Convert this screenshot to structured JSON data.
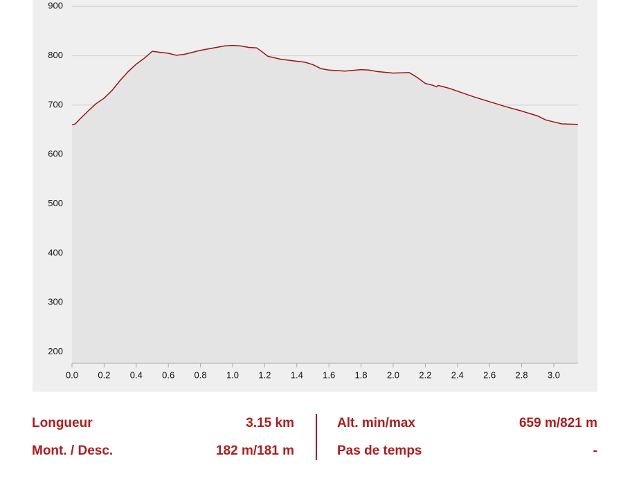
{
  "chart_data": {
    "type": "area",
    "x": [
      0.0,
      0.02,
      0.05,
      0.1,
      0.15,
      0.2,
      0.25,
      0.3,
      0.35,
      0.4,
      0.45,
      0.5,
      0.55,
      0.6,
      0.65,
      0.7,
      0.8,
      0.9,
      0.95,
      1.0,
      1.05,
      1.1,
      1.15,
      1.18,
      1.22,
      1.3,
      1.4,
      1.45,
      1.5,
      1.55,
      1.6,
      1.7,
      1.8,
      1.85,
      1.9,
      2.0,
      2.1,
      2.15,
      2.2,
      2.25,
      2.27,
      2.28,
      2.35,
      2.5,
      2.6,
      2.7,
      2.8,
      2.9,
      2.95,
      3.0,
      3.05,
      3.15
    ],
    "values": [
      660,
      662,
      672,
      688,
      703,
      714,
      730,
      750,
      768,
      783,
      795,
      809,
      807,
      805,
      801,
      803,
      811,
      817,
      820,
      821,
      820,
      817,
      816,
      809,
      799,
      793,
      789,
      787,
      782,
      774,
      771,
      769,
      772,
      771,
      768,
      765,
      766,
      756,
      744,
      740,
      737,
      740,
      734,
      717,
      707,
      697,
      688,
      678,
      670,
      666,
      662,
      661
    ],
    "color": "#a01010",
    "fill_color": "#e4e4e4",
    "xlim": [
      0,
      3.15
    ],
    "ylim": [
      177,
      913
    ],
    "xticks": [
      {
        "value": 0,
        "label": "0.0"
      },
      0.2,
      0.4,
      0.6,
      0.8,
      {
        "value": 1,
        "label": "1.0"
      },
      1.2,
      1.4,
      1.6,
      1.8,
      {
        "value": 2,
        "label": "2.0"
      },
      2.2,
      2.4,
      2.6,
      2.8,
      {
        "value": 3,
        "label": "3.0"
      }
    ],
    "yticks": [
      200,
      300,
      400,
      500,
      600,
      700,
      800,
      900
    ],
    "grid": true
  },
  "stats": [
    {
      "label": "Longueur",
      "value": "3.15 km"
    },
    {
      "label": "Alt. min/max",
      "value": "659 m/821 m"
    },
    {
      "label": "Mont. / Desc.",
      "value": "182 m/181 m"
    },
    {
      "label": "Pas de temps",
      "value": "-"
    }
  ]
}
